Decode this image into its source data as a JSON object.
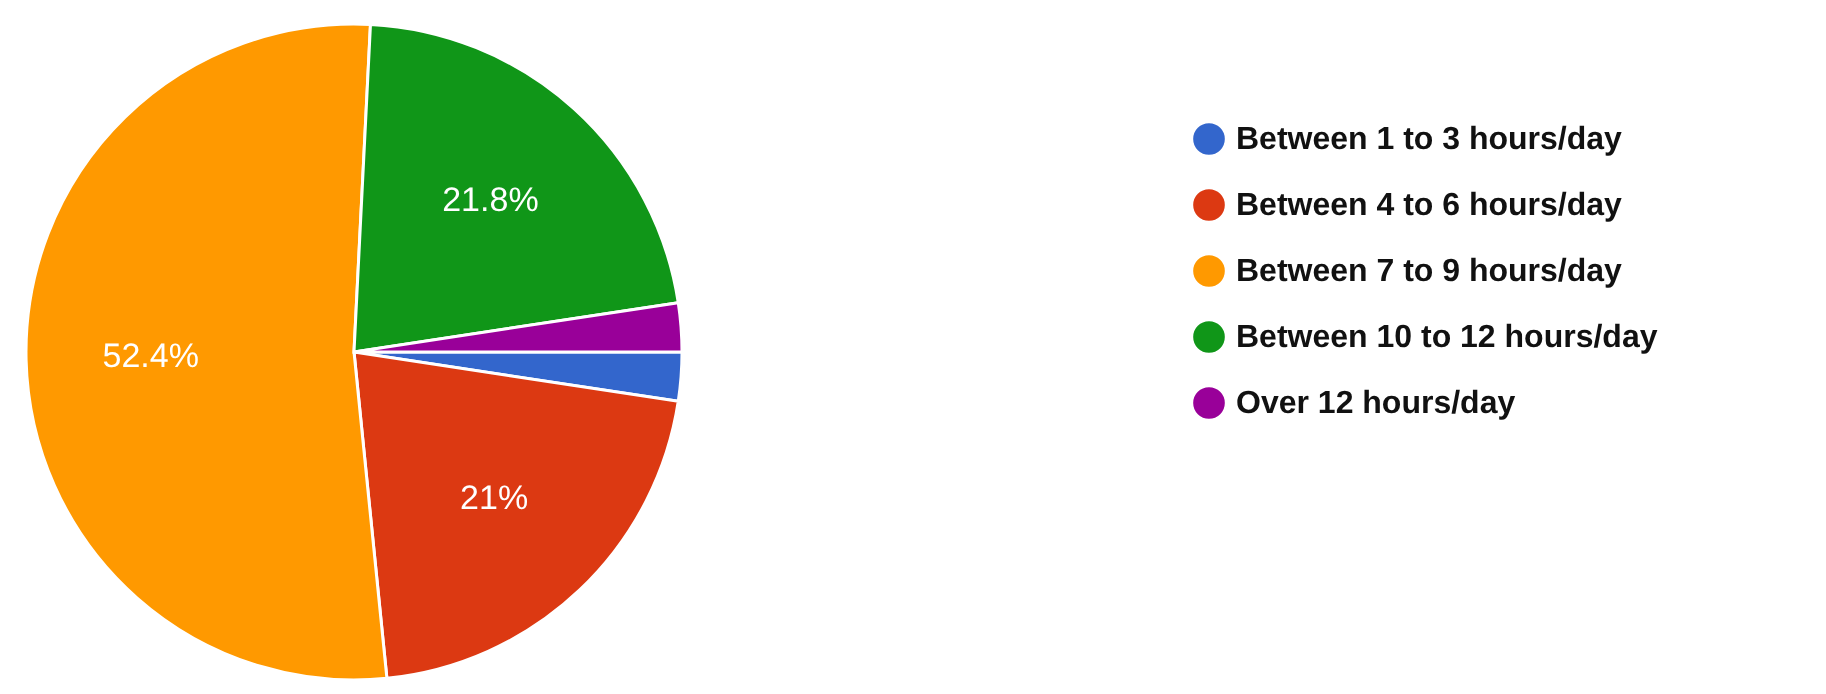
{
  "chart_data": {
    "type": "pie",
    "categories": [
      "Between 1 to 3 hours/day",
      "Between 4 to 6 hours/day",
      "Between 7 to 9 hours/day",
      "Between 10 to 12 hours/day",
      "Over 12 hours/day"
    ],
    "values": [
      2.4,
      21,
      52.4,
      21.8,
      2.4
    ],
    "colors": [
      "#3366cc",
      "#dc3912",
      "#ff9900",
      "#109618",
      "#990099"
    ],
    "value_labels": [
      null,
      "21%",
      "52.4%",
      "21.8%",
      null
    ],
    "legend": "right"
  }
}
